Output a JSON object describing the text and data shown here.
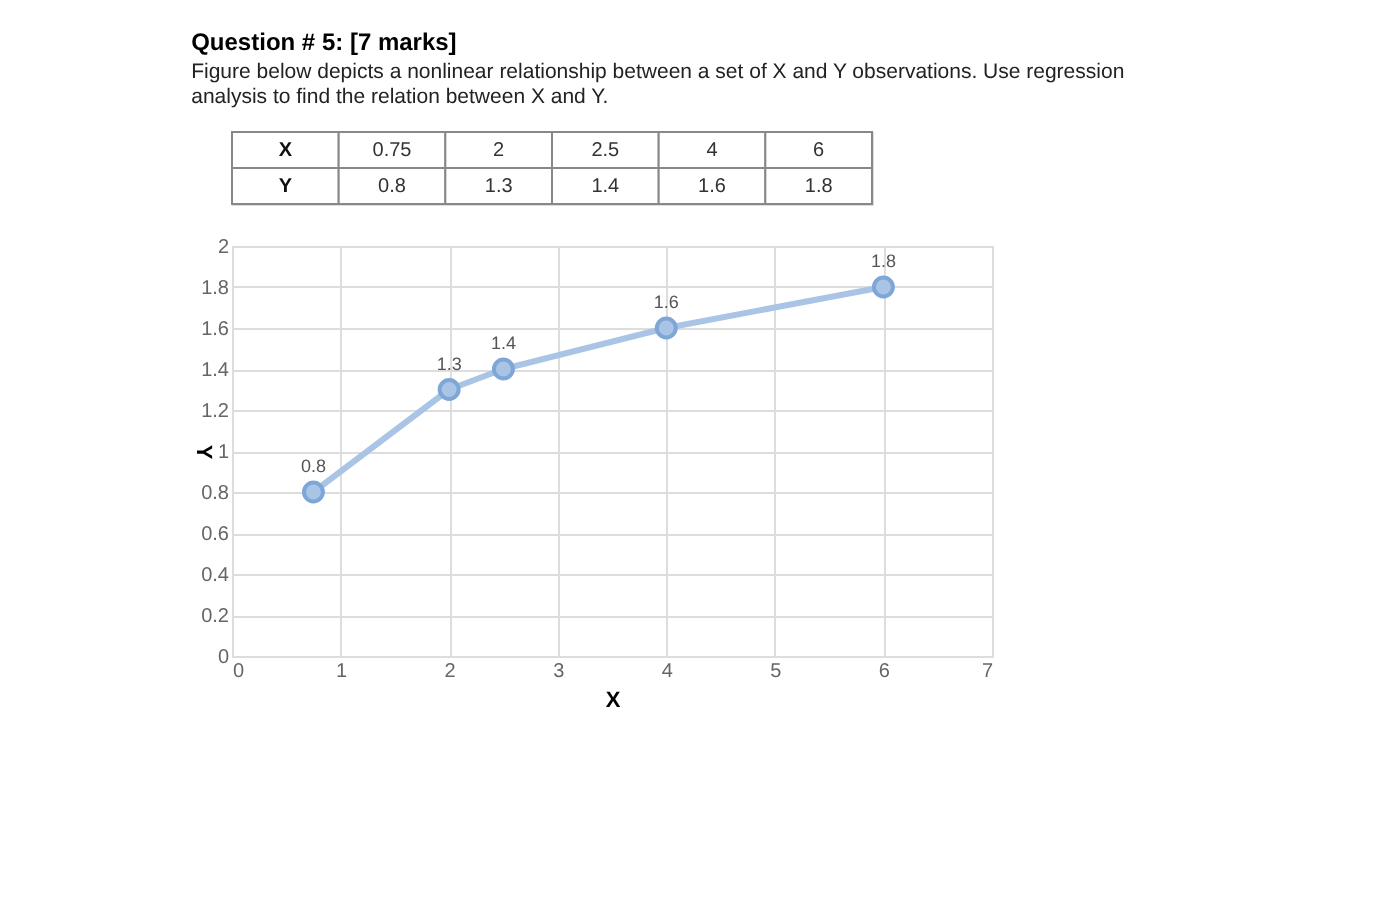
{
  "chart_data": {
    "type": "line",
    "title": "Question # 5: [7 marks]",
    "subtitle": [
      "Figure below depicts a nonlinear relationship between a set of X and Y observations. Use regression",
      "analysis to find the relation between X and Y."
    ],
    "x": [
      0.75,
      2,
      2.5,
      4,
      6
    ],
    "series": [
      {
        "color": "#a9c4e4",
        "values": [
          0.8,
          1.3,
          1.4,
          1.6,
          1.8
        ]
      }
    ],
    "xlabel": "X",
    "ylabel": "Y",
    "xlim": [
      0,
      7
    ],
    "xticks": [
      0,
      1,
      2,
      3,
      4,
      5,
      6,
      7
    ],
    "ylim": [
      0,
      2
    ],
    "yticks": [
      0,
      0.2,
      0.4,
      0.6,
      0.8,
      1,
      1.2,
      1.4,
      1.6,
      1.8,
      2
    ],
    "annotations": [
      "X",
      "0.75",
      "2",
      "2.5",
      "4",
      "6",
      "Y",
      "0.8",
      "1.3",
      "1.4",
      "1.6",
      "1.8"
    ],
    "grid": true,
    "marker": "circle",
    "line_style": "solid",
    "data_labels": true
  }
}
